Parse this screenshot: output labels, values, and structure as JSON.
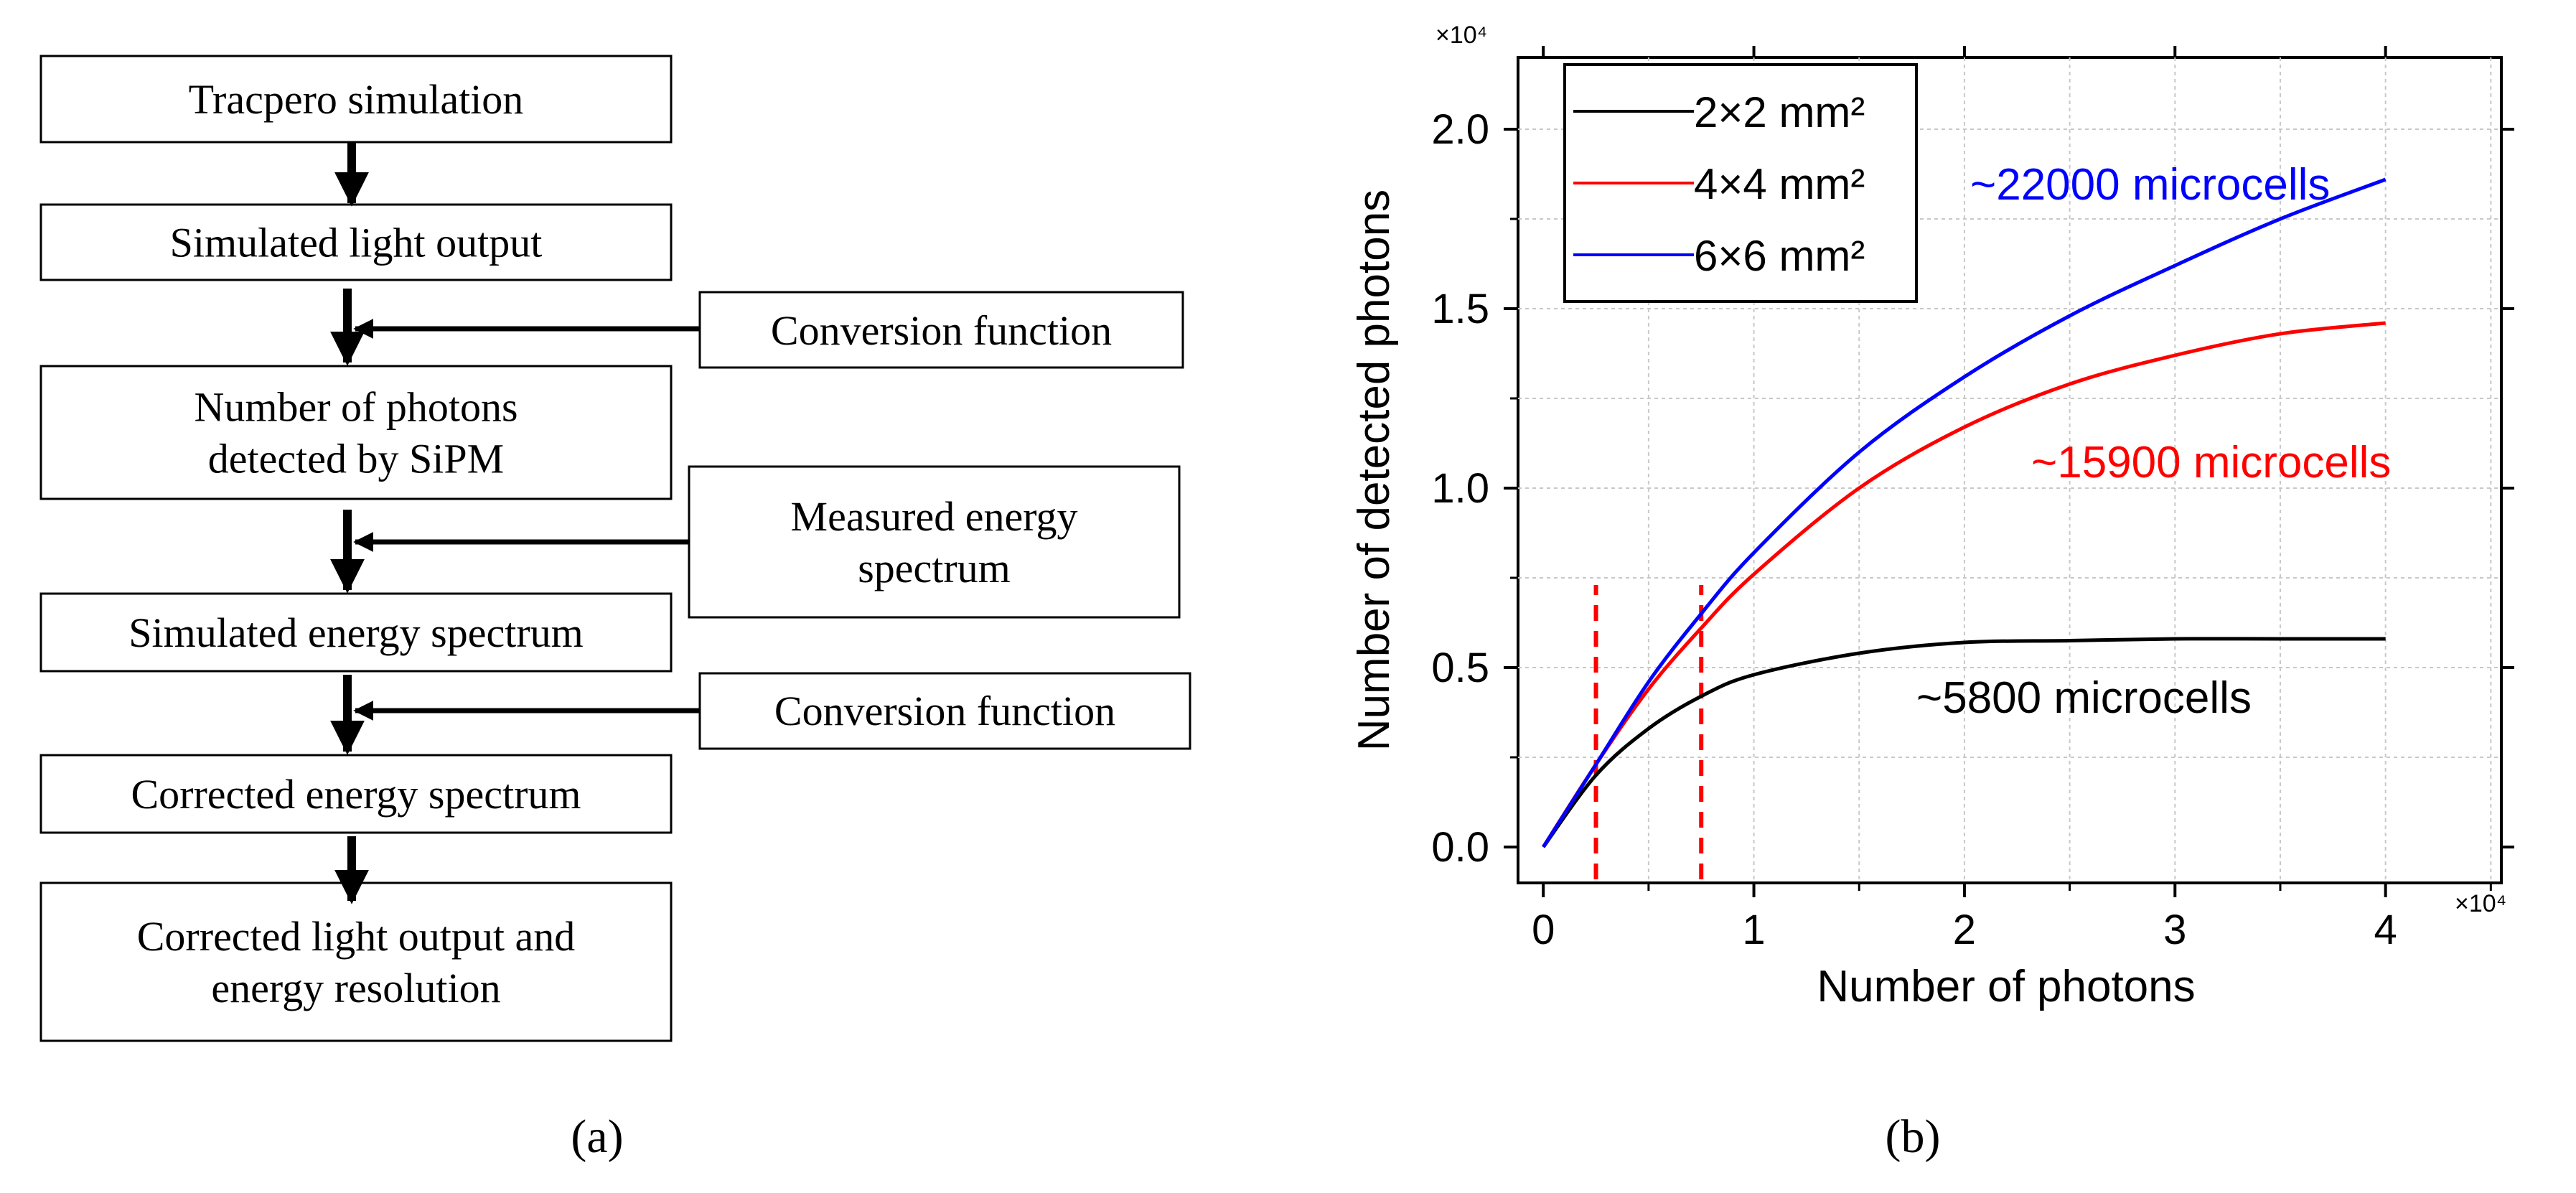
{
  "flowchart": {
    "boxes": [
      "Tracpero simulation",
      "Simulated light output",
      [
        "Number of photons",
        "detected by SiPM"
      ],
      "Simulated energy spectrum",
      "Corrected energy spectrum",
      [
        "Corrected light output and",
        "energy resolution"
      ]
    ],
    "side_boxes": [
      "Conversion function",
      [
        "Measured energy",
        "spectrum"
      ],
      "Conversion function"
    ]
  },
  "panel_labels": {
    "a": "(a)",
    "b": "(b)"
  },
  "chart_data": {
    "type": "line",
    "xlabel": "Number of photons",
    "ylabel": "Number of detected photons",
    "x_multiplier": "×10⁴",
    "y_multiplier": "×10⁴",
    "xlim": [
      -0.12,
      4.55
    ],
    "ylim": [
      -0.1,
      2.2
    ],
    "xticks": [
      0,
      1,
      2,
      3,
      4
    ],
    "xtick_labels": [
      "0",
      "1",
      "2",
      "3",
      "4"
    ],
    "yticks": [
      0.0,
      0.5,
      1.0,
      1.5,
      2.0
    ],
    "ytick_labels": [
      "0.0",
      "0.5",
      "1.0",
      "1.5",
      "2.0"
    ],
    "grid": true,
    "legend_position": "top-left",
    "series": [
      {
        "name": "2×2 mm²",
        "color": "#000000",
        "capacity": 0.58,
        "x": [
          0,
          0.25,
          0.5,
          0.75,
          1.0,
          1.5,
          2.0,
          2.5,
          3.0,
          3.5,
          4.0
        ],
        "y": [
          0,
          0.2,
          0.33,
          0.42,
          0.48,
          0.54,
          0.57,
          0.575,
          0.58,
          0.58,
          0.58
        ]
      },
      {
        "name": "4×4 mm²",
        "color": "#ff0000",
        "capacity": 1.59,
        "x": [
          0,
          0.25,
          0.5,
          0.75,
          1.0,
          1.5,
          2.0,
          2.5,
          3.0,
          3.5,
          4.0
        ],
        "y": [
          0,
          0.23,
          0.44,
          0.61,
          0.76,
          1.0,
          1.17,
          1.29,
          1.37,
          1.43,
          1.46
        ]
      },
      {
        "name": "6×6 mm²",
        "color": "#0000ff",
        "capacity": 2.2,
        "x": [
          0,
          0.25,
          0.5,
          0.75,
          1.0,
          1.5,
          2.0,
          2.5,
          3.0,
          3.5,
          4.0
        ],
        "y": [
          0,
          0.23,
          0.46,
          0.65,
          0.82,
          1.1,
          1.31,
          1.48,
          1.62,
          1.75,
          1.86
        ]
      }
    ],
    "vlines": [
      0.25,
      0.75
    ],
    "vline_color": "#ff0000",
    "vline_top": 0.73,
    "annotations": [
      {
        "text": "~22000 microcells",
        "color": "#0000ff"
      },
      {
        "text": "~15900 microcells",
        "color": "#ff0000"
      },
      {
        "text": "~5800 microcells",
        "color": "#000000"
      }
    ]
  }
}
